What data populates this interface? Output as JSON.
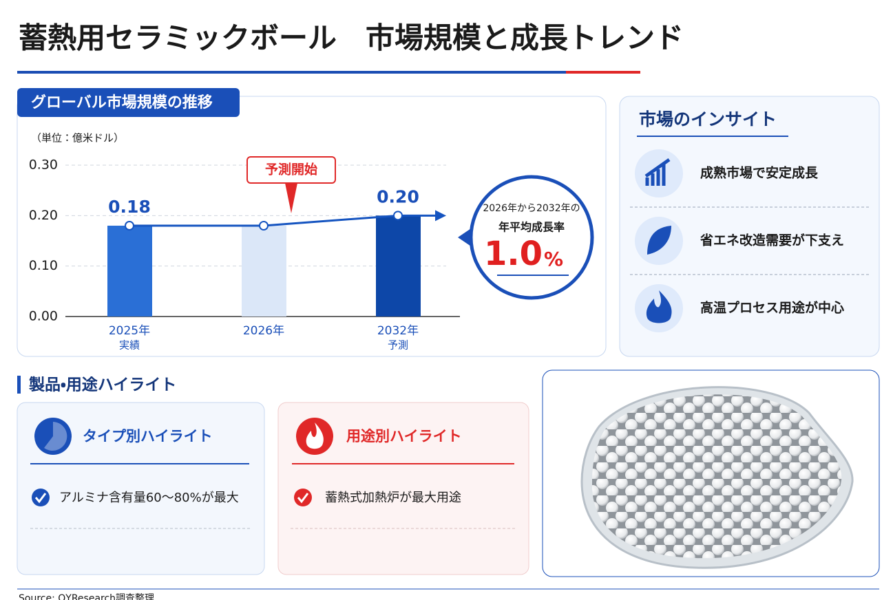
{
  "title": "蓄熱用セラミックボール　市場規模と成長トレンド",
  "chart_data": {
    "type": "bar",
    "title": "グローバル市場規模の推移",
    "unit_label": "（単位：億米ドル）",
    "categories": [
      "2025年",
      "2026年",
      "2032年"
    ],
    "category_sublabels": [
      "実績",
      null,
      "予測"
    ],
    "values": [
      0.18,
      0.18,
      0.2
    ],
    "value_labels": [
      "0.18",
      null,
      "0.20"
    ],
    "colors": [
      "#2a6fd6",
      "#dbe7f8",
      "#0d47a8"
    ],
    "line_color": "#1554c0",
    "ylim": [
      0,
      0.3
    ],
    "yticks": [
      {
        "value": 0,
        "label": "0.00"
      },
      {
        "value": 0.1,
        "label": "0.10"
      },
      {
        "value": 0.2,
        "label": "0.20"
      },
      {
        "value": 0.3,
        "label": "0.30"
      }
    ],
    "grid": true,
    "annotation": "予測開始",
    "cagr": {
      "line1": "2026年から2032年の",
      "line2": "年平均成長率",
      "value": "1.0",
      "unit": "%"
    }
  },
  "insights": {
    "title": "市場のインサイト",
    "items": [
      "成熟市場で安定成長",
      "省エネ改造需要が下支え",
      "高温プロセス用途が中心"
    ]
  },
  "highlights": {
    "title": "製品・用途ハイライト",
    "cards": [
      {
        "title": "タイプ別ハイライト",
        "item": "アルミナ含有量60～80%が最大"
      },
      {
        "title": "用途別ハイライト",
        "item": "蓄熱式加熱炉が最大用途"
      }
    ]
  },
  "source": "Source: QYResearch調査整理"
}
